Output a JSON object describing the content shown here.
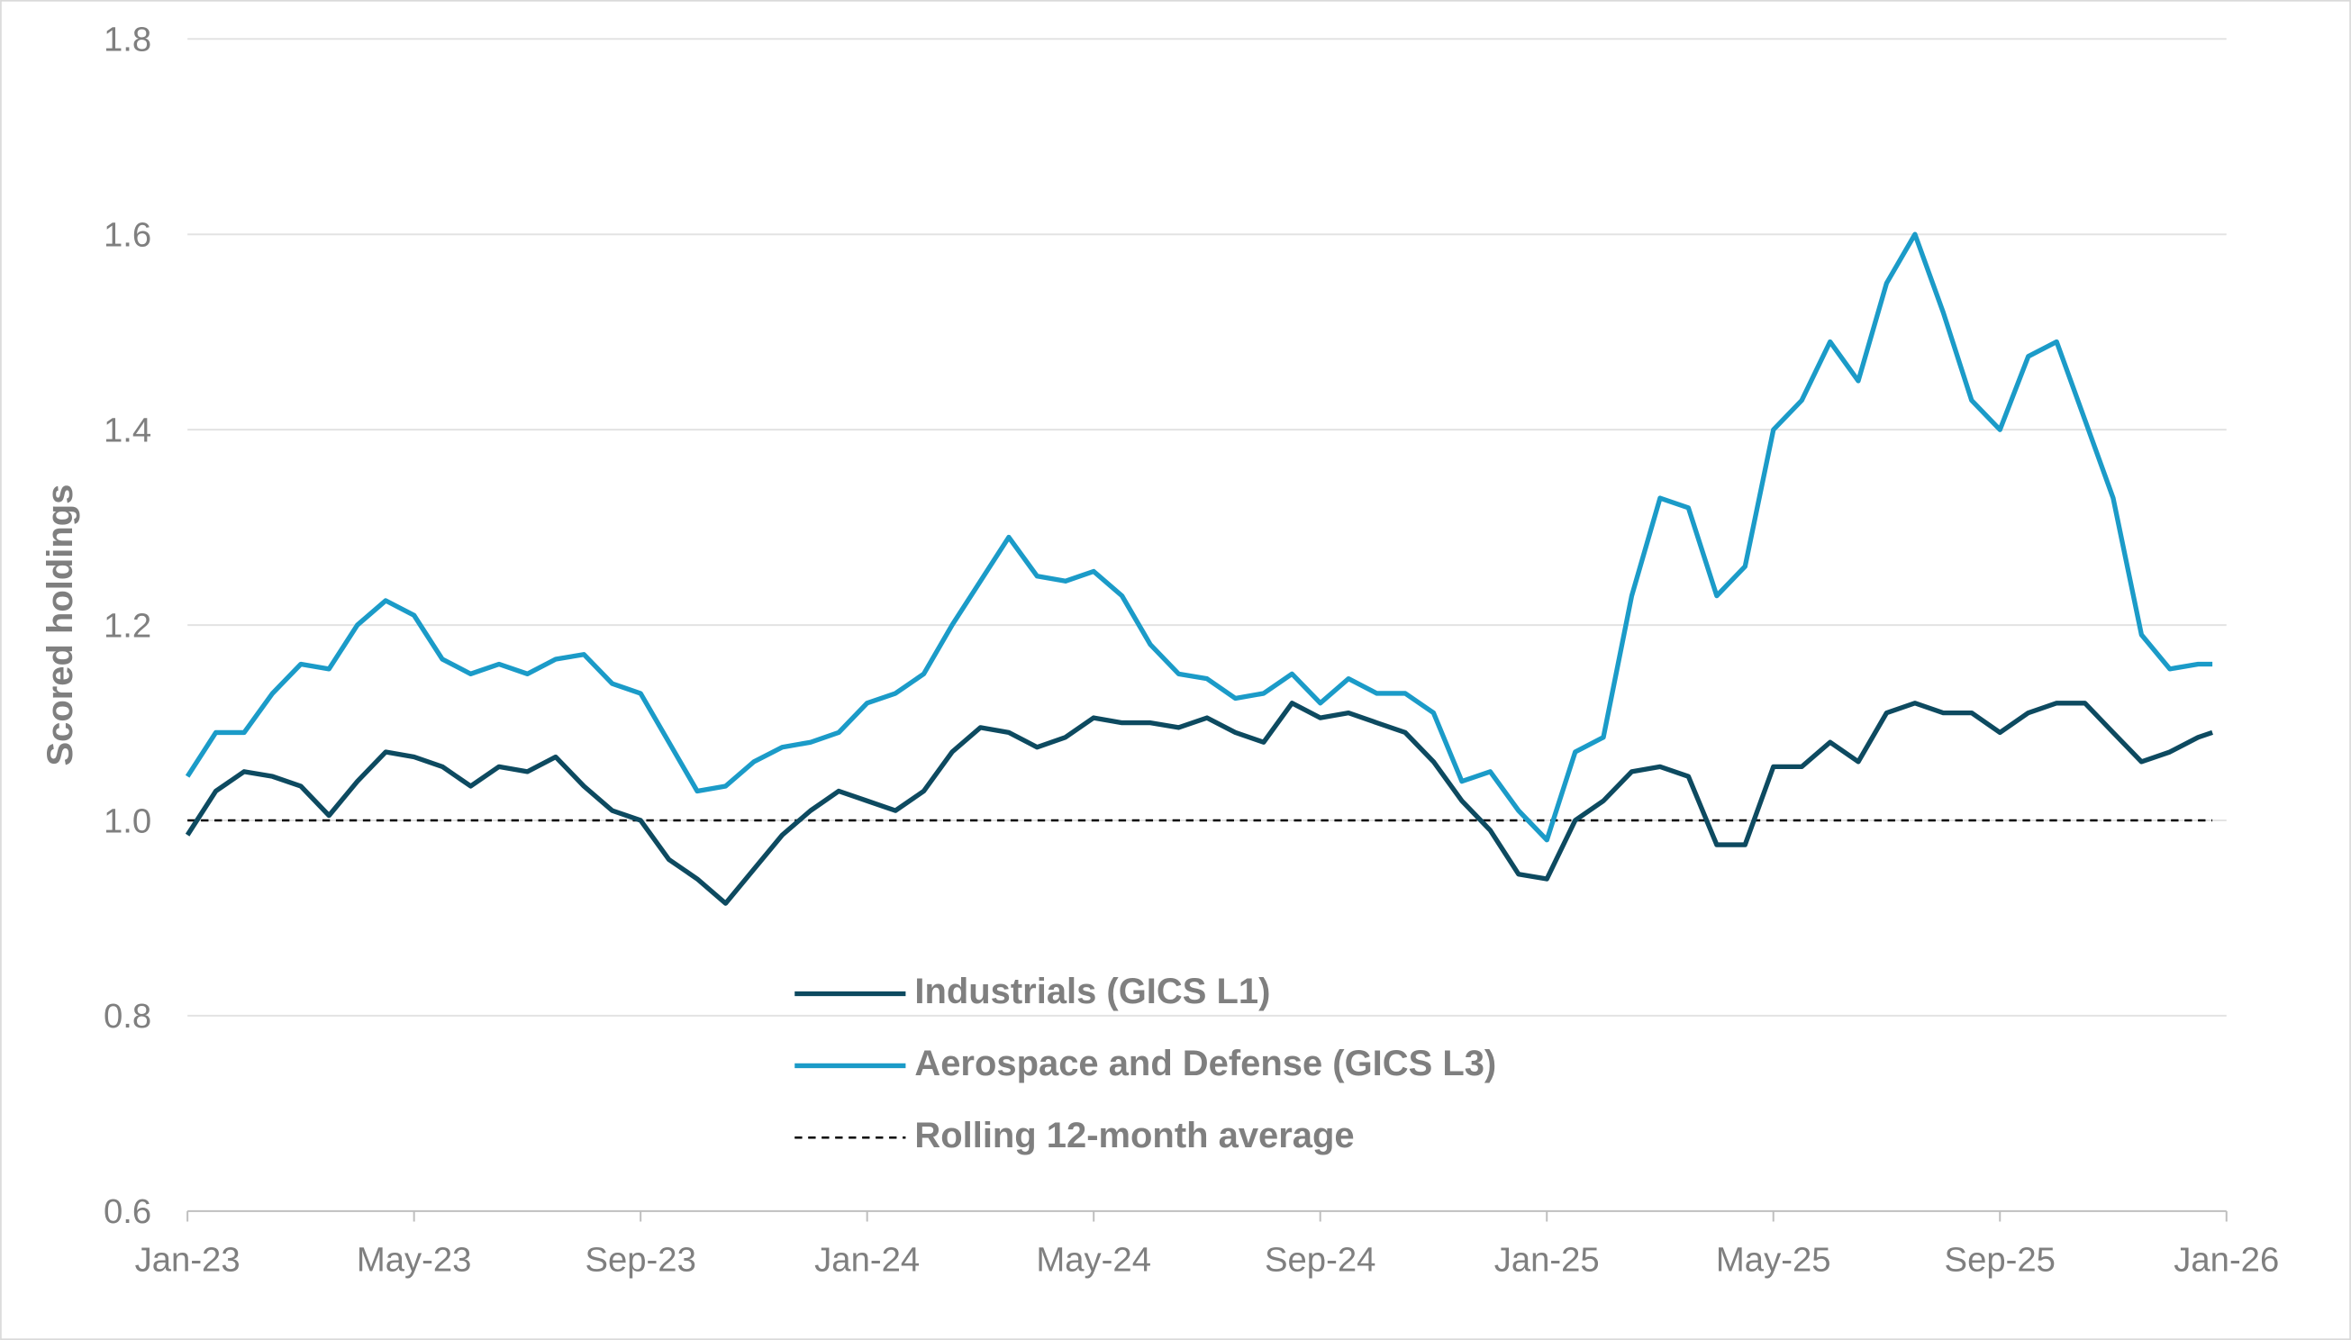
{
  "chart_data": {
    "type": "line",
    "y_label": "Scored holdings",
    "x": [
      0,
      0.5,
      1,
      1.5,
      2,
      2.5,
      3,
      3.5,
      4,
      4.5,
      5,
      5.5,
      6,
      6.5,
      7,
      7.5,
      8,
      8.5,
      9,
      9.5,
      10,
      10.5,
      11,
      11.5,
      12,
      12.5,
      13,
      13.5,
      14,
      14.5,
      15,
      15.5,
      16,
      16.5,
      17,
      17.5,
      18,
      18.5,
      19,
      19.5,
      20,
      20.5,
      21,
      21.5,
      22,
      22.5,
      23,
      23.5,
      24,
      24.5,
      25,
      25.5,
      26,
      26.5,
      27,
      27.5,
      28,
      28.5,
      29,
      29.5,
      30,
      30.5,
      31,
      31.5,
      32,
      32.5,
      33,
      33.5,
      34,
      34.5,
      35,
      35.5,
      35.75
    ],
    "series": [
      {
        "name": "Industrials (GICS L1)",
        "color": "#0d4a60",
        "values": [
          0.985,
          1.03,
          1.05,
          1.045,
          1.035,
          1.005,
          1.04,
          1.07,
          1.065,
          1.055,
          1.035,
          1.055,
          1.05,
          1.065,
          1.035,
          1.01,
          1.0,
          0.96,
          0.94,
          0.915,
          0.95,
          0.985,
          1.01,
          1.03,
          1.02,
          1.01,
          1.03,
          1.07,
          1.095,
          1.09,
          1.075,
          1.085,
          1.105,
          1.1,
          1.1,
          1.095,
          1.105,
          1.09,
          1.08,
          1.12,
          1.105,
          1.11,
          1.1,
          1.09,
          1.06,
          1.02,
          0.99,
          0.945,
          0.94,
          1.0,
          1.02,
          1.05,
          1.055,
          1.045,
          0.975,
          0.975,
          1.055,
          1.055,
          1.08,
          1.06,
          1.11,
          1.12,
          1.11,
          1.11,
          1.09,
          1.11,
          1.12,
          1.12,
          1.09,
          1.06,
          1.07,
          1.085,
          1.09
        ]
      },
      {
        "name": "Aerospace and Defense (GICS L3)",
        "color": "#1b9bc8",
        "values": [
          1.045,
          1.09,
          1.09,
          1.13,
          1.16,
          1.155,
          1.2,
          1.225,
          1.21,
          1.165,
          1.15,
          1.16,
          1.15,
          1.165,
          1.17,
          1.14,
          1.13,
          1.08,
          1.03,
          1.035,
          1.06,
          1.075,
          1.08,
          1.09,
          1.12,
          1.13,
          1.15,
          1.2,
          1.245,
          1.29,
          1.25,
          1.245,
          1.255,
          1.23,
          1.18,
          1.15,
          1.145,
          1.125,
          1.13,
          1.15,
          1.12,
          1.145,
          1.13,
          1.13,
          1.11,
          1.04,
          1.05,
          1.01,
          0.98,
          1.07,
          1.085,
          1.23,
          1.33,
          1.32,
          1.23,
          1.26,
          1.4,
          1.43,
          1.49,
          1.45,
          1.55,
          1.6,
          1.52,
          1.43,
          1.4,
          1.475,
          1.49,
          1.41,
          1.33,
          1.19,
          1.155,
          1.16,
          1.16
        ]
      }
    ],
    "reference_lines": [
      {
        "name": "Rolling 12-month average",
        "value": 1.0,
        "color": "#000000",
        "dashed": true
      }
    ],
    "xlim": [
      0,
      36
    ],
    "xticks": [
      {
        "value": 0,
        "label": "Jan-23"
      },
      {
        "value": 4,
        "label": "May-23"
      },
      {
        "value": 8,
        "label": "Sep-23"
      },
      {
        "value": 12,
        "label": "Jan-24"
      },
      {
        "value": 16,
        "label": "May-24"
      },
      {
        "value": 20,
        "label": "Sep-24"
      },
      {
        "value": 24,
        "label": "Jan-25"
      },
      {
        "value": 28,
        "label": "May-25"
      },
      {
        "value": 32,
        "label": "Sep-25"
      },
      {
        "value": 36,
        "label": "Jan-26"
      }
    ],
    "ylim": [
      0.6,
      1.8
    ],
    "yticks": [
      0.6,
      0.8,
      {
        "value": 1.0,
        "label": "1.0"
      },
      1.2,
      1.4,
      1.6,
      1.8
    ],
    "grid": true
  }
}
